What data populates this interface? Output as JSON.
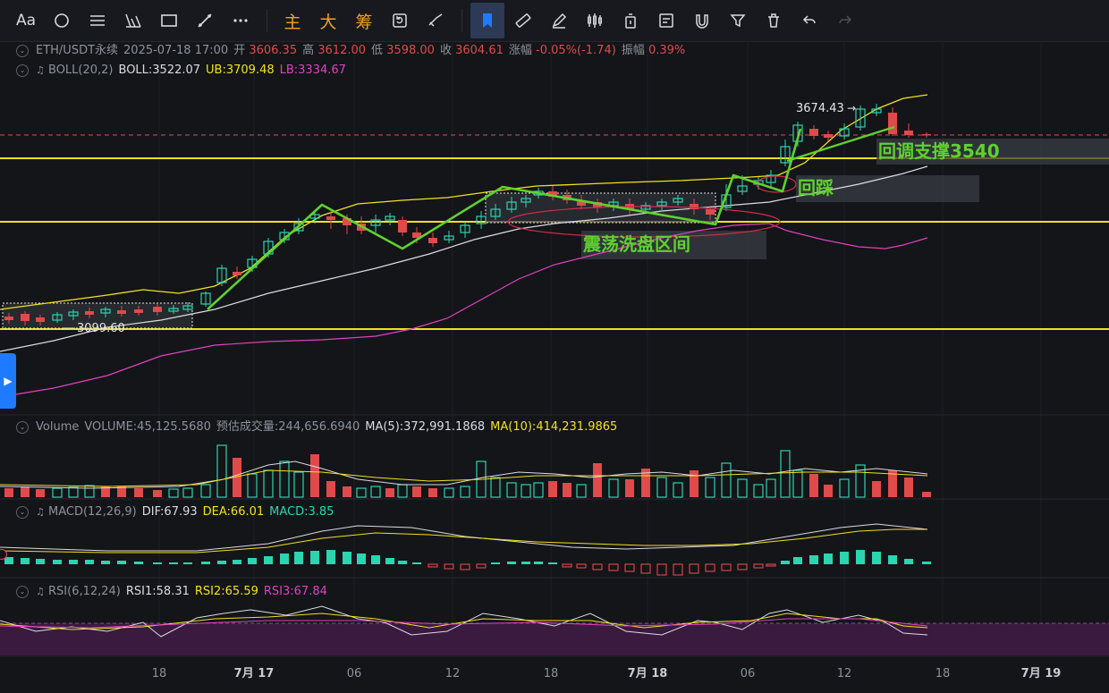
{
  "toolbar": {
    "text_tool": "Aa",
    "cn_1": "主",
    "cn_2": "大",
    "cn_3": "筹"
  },
  "header": {
    "symbol": "ETH/USDT永续",
    "datetime": "2025-07-18 17:00",
    "open_label": "开",
    "open": "3606.35",
    "high_label": "高",
    "high": "3612.00",
    "low_label": "低",
    "low": "3598.00",
    "close_label": "收",
    "close": "3604.61",
    "change_label": "涨幅",
    "change": "-0.05%(-1.74)",
    "amplitude_label": "振幅",
    "amplitude": "0.39%"
  },
  "boll": {
    "name": "BOLL(20,2)",
    "mid": "BOLL:3522.07",
    "ub": "UB:3709.48",
    "lb": "LB:3334.67"
  },
  "annotations": {
    "high_price": "3674.43",
    "low_price": "3099.60",
    "support": "回调支撑3540",
    "pullback": "回踩",
    "range": "震荡洗盘区间"
  },
  "volume": {
    "name": "Volume",
    "value": "VOLUME:45,125.5680",
    "estimate": "预估成交量:244,656.6940",
    "ma5": "MA(5):372,991.1868",
    "ma10": "MA(10):414,231.9865"
  },
  "macd": {
    "name": "MACD(12,26,9)",
    "dif": "DIF:67.93",
    "dea": "DEA:66.01",
    "macd": "MACD:3.85"
  },
  "rsi": {
    "name": "RSI(6,12,24)",
    "rsi1": "RSI1:58.31",
    "rsi2": "RSI2:65.59",
    "rsi3": "RSI3:67.84"
  },
  "x_axis": [
    "18",
    "7月 17",
    "06",
    "12",
    "18",
    "7月 18",
    "06",
    "12",
    "18",
    "7月 19"
  ],
  "colors": {
    "up": "#2bd5b0",
    "down": "#e04a4a",
    "boll_mid": "#d9dce1",
    "boll_ub": "#f2e21a",
    "boll_lb": "#e041c0",
    "annotation_green": "#5fd12e",
    "level_line": "#f2e21a",
    "accent": "#1e7bff"
  },
  "icons": [
    "text-icon",
    "circle-icon",
    "lines-icon",
    "fib-icon",
    "rect-icon",
    "trendline-icon",
    "more-icon",
    "replay-icon",
    "ruler-icon",
    "bookmark-icon",
    "measure-icon",
    "brush-icon",
    "candles-icon",
    "lock-icon",
    "note-icon",
    "magnet-icon",
    "filter-icon",
    "trash-icon",
    "undo-icon",
    "redo-icon"
  ]
}
